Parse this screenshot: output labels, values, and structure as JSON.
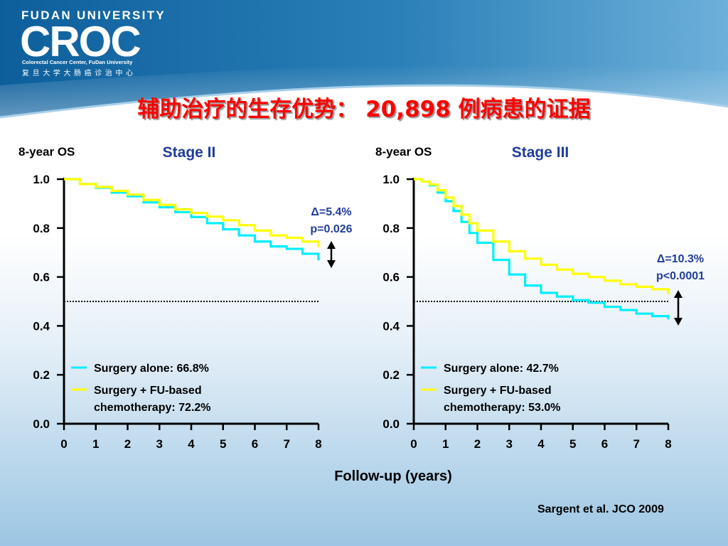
{
  "header": {
    "university": "FUDAN UNIVERSITY",
    "logo_text": "CROC",
    "center_name_en": "Colorectal Cancer Center, FuDan University",
    "center_name_cn": "复旦大学大肠癌诊治中心",
    "title": "辅助治疗的生存优势：  20,898 例病患的证据"
  },
  "colors": {
    "title": "#ff0000",
    "panel_title": "#1f3d9a",
    "surgery_alone": "#00eeff",
    "surgery_chemo": "#ffff00",
    "header_blue": "#1a6ea8"
  },
  "chart_data": [
    {
      "type": "line",
      "ylabel": "8-year OS",
      "title": "Stage II",
      "xlim": [
        0,
        8
      ],
      "ylim": [
        0,
        1.0
      ],
      "x_ticks": [
        "0",
        "1",
        "2",
        "3",
        "4",
        "5",
        "6",
        "7",
        "8"
      ],
      "y_ticks": [
        "0.0",
        "0.2",
        "0.4",
        "0.6",
        "0.8",
        "1.0"
      ],
      "reference_line_y": 0.5,
      "series": [
        {
          "name": "Surgery alone: 66.8%",
          "color": "#00eeff",
          "x": [
            0,
            0.5,
            1,
            1.5,
            2,
            2.5,
            3,
            3.5,
            4,
            4.5,
            5,
            5.5,
            6,
            6.5,
            7,
            7.5,
            8
          ],
          "y": [
            1.0,
            0.98,
            0.965,
            0.945,
            0.93,
            0.905,
            0.885,
            0.865,
            0.845,
            0.82,
            0.795,
            0.77,
            0.745,
            0.725,
            0.715,
            0.695,
            0.668
          ]
        },
        {
          "name": "Surgery + FU-based chemotherapy: 72.2%",
          "color": "#ffff00",
          "x": [
            0,
            0.5,
            1,
            1.5,
            2,
            2.5,
            3,
            3.5,
            4,
            4.5,
            5,
            5.5,
            6,
            6.5,
            7,
            7.5,
            8
          ],
          "y": [
            1.0,
            0.98,
            0.968,
            0.952,
            0.937,
            0.915,
            0.895,
            0.877,
            0.862,
            0.847,
            0.832,
            0.812,
            0.79,
            0.77,
            0.76,
            0.745,
            0.722
          ]
        }
      ],
      "annotation": [
        "Δ=5.4%",
        "p=0.026"
      ]
    },
    {
      "type": "line",
      "ylabel": "8-year OS",
      "title": "Stage III",
      "xlim": [
        0,
        8
      ],
      "ylim": [
        0,
        1.0
      ],
      "x_ticks": [
        "0",
        "1",
        "2",
        "3",
        "4",
        "5",
        "6",
        "7",
        "8"
      ],
      "y_ticks": [
        "0.0",
        "0.2",
        "0.4",
        "0.6",
        "0.8",
        "1.0"
      ],
      "reference_line_y": 0.5,
      "series": [
        {
          "name": "Surgery alone: 42.7%",
          "color": "#00eeff",
          "x": [
            0,
            0.25,
            0.5,
            0.75,
            1,
            1.25,
            1.5,
            1.75,
            2,
            2.5,
            3,
            3.5,
            4,
            4.5,
            5,
            5.5,
            6,
            6.5,
            7,
            7.5,
            8
          ],
          "y": [
            1.0,
            0.99,
            0.975,
            0.945,
            0.91,
            0.87,
            0.825,
            0.78,
            0.74,
            0.67,
            0.61,
            0.565,
            0.535,
            0.52,
            0.505,
            0.495,
            0.478,
            0.465,
            0.45,
            0.44,
            0.427
          ]
        },
        {
          "name": "Surgery + FU-based chemotherapy: 53.0%",
          "color": "#ffff00",
          "x": [
            0,
            0.25,
            0.5,
            0.75,
            1,
            1.25,
            1.5,
            1.75,
            2,
            2.5,
            3,
            3.5,
            4,
            4.5,
            5,
            5.5,
            6,
            6.5,
            7,
            7.5,
            8
          ],
          "y": [
            1.0,
            0.99,
            0.978,
            0.955,
            0.925,
            0.89,
            0.855,
            0.82,
            0.79,
            0.745,
            0.705,
            0.675,
            0.65,
            0.63,
            0.613,
            0.6,
            0.585,
            0.57,
            0.56,
            0.55,
            0.53
          ]
        }
      ],
      "annotation": [
        "Δ=10.3%",
        "p<0.0001"
      ]
    }
  ],
  "shared_xlabel": "Follow-up (years)",
  "citation": "Sargent et al. JCO 2009"
}
